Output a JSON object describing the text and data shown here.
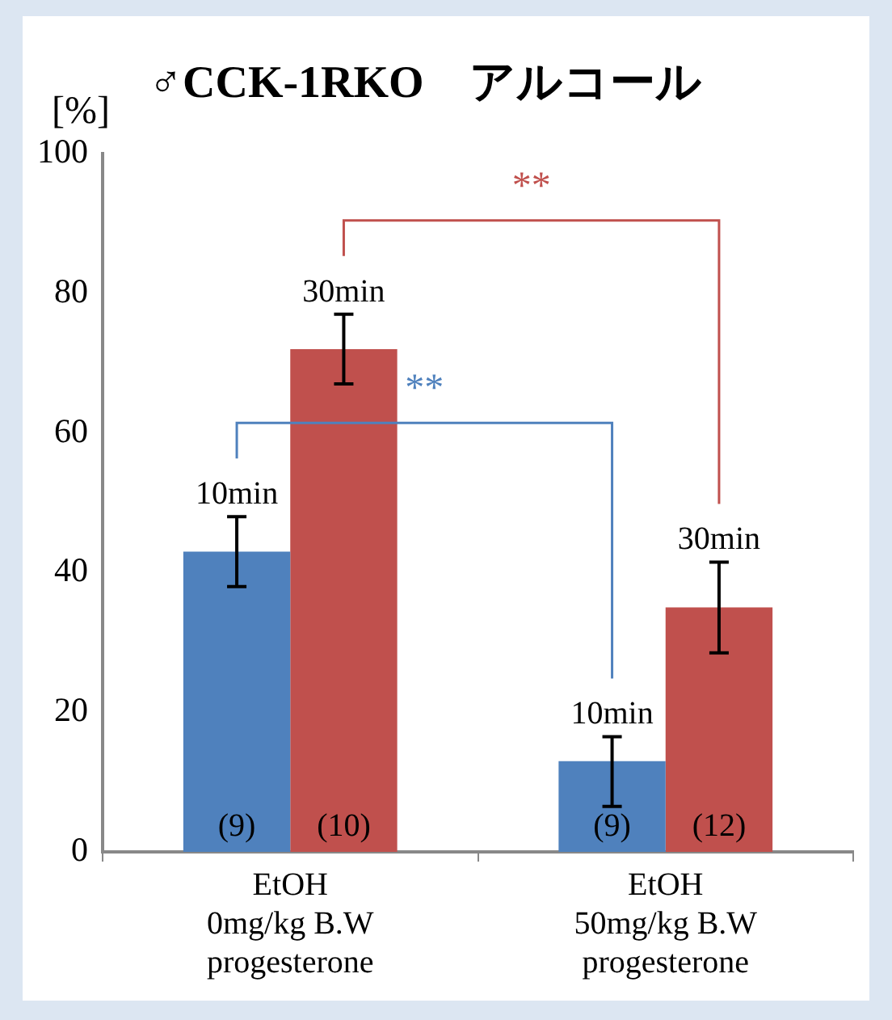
{
  "chart_data": {
    "type": "bar",
    "title": "♂CCK-1RKO　アルコール",
    "ylabel": "[%]",
    "categories": [
      "EtOH\n0mg/kg B.W\nprogesterone",
      "EtOH\n50mg/kg B.W\nprogesterone"
    ],
    "series": [
      {
        "color": "#4f81bd",
        "values": [
          43,
          13
        ],
        "errors": [
          5,
          [
            6.5,
            16.5
          ]
        ]
      },
      {
        "color": "#c0504d",
        "values": [
          72,
          35
        ],
        "errors": [
          5,
          6.5
        ]
      }
    ],
    "ylim": [
      0,
      100
    ],
    "yticks": [
      0,
      20,
      40,
      60,
      80,
      100
    ],
    "grid": false,
    "legend": false,
    "annotations": [
      "10min",
      "30min",
      "10min",
      "30min",
      "(9)",
      "(10)",
      "(9)",
      "(12)",
      "**",
      "**"
    ]
  }
}
